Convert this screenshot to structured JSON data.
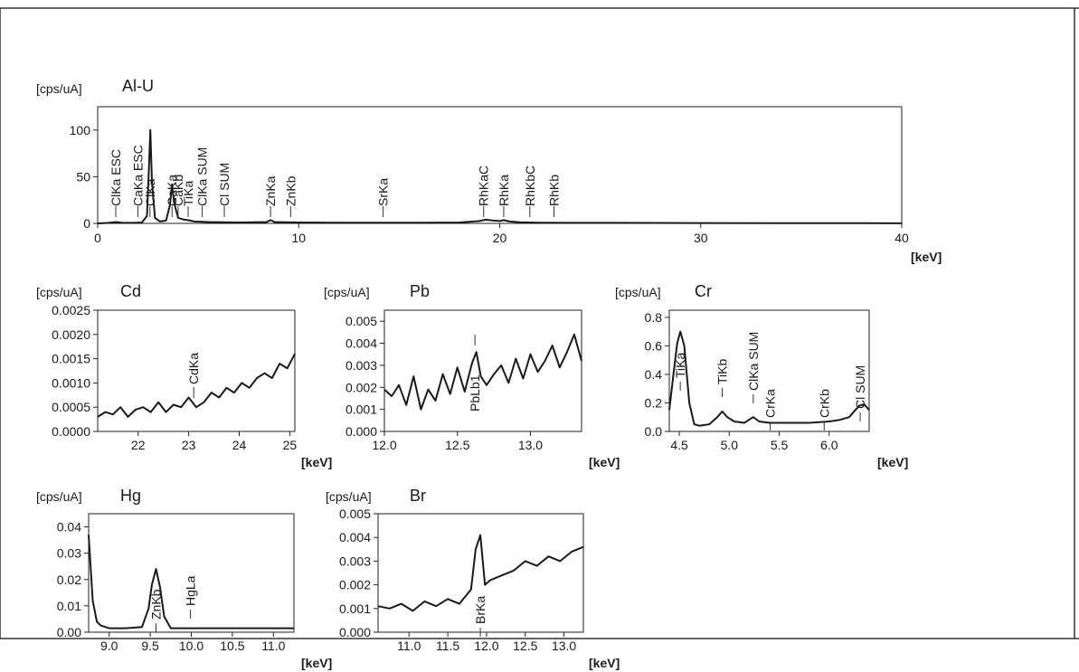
{
  "chart_data": [
    {
      "id": "alu",
      "type": "line",
      "title": "Al-U",
      "ylabel": "[cps/uA]",
      "xlabel": "[keV]",
      "xlim": [
        0,
        40
      ],
      "ylim": [
        0,
        125
      ],
      "xticks": [
        0,
        10,
        20,
        30,
        40
      ],
      "yticks": [
        0,
        50,
        100
      ],
      "peaks": [
        {
          "label": "ClKa ESC",
          "x": 0.9
        },
        {
          "label": "CaKa ESC",
          "x": 2.0
        },
        {
          "label": "ClKa",
          "x": 2.6
        },
        {
          "label": "CaKa",
          "x": 3.7
        },
        {
          "label": "CaKb",
          "x": 4.0
        },
        {
          "label": "TiKa",
          "x": 4.5
        },
        {
          "label": "ClKa SUM",
          "x": 5.2
        },
        {
          "label": "Cl SUM",
          "x": 6.3
        },
        {
          "label": "ZnKa",
          "x": 8.6
        },
        {
          "label": "ZnKb",
          "x": 9.6
        },
        {
          "label": "SrKa",
          "x": 14.2
        },
        {
          "label": "RhKaC",
          "x": 19.2
        },
        {
          "label": "RhKa",
          "x": 20.2
        },
        {
          "label": "RhKbC",
          "x": 21.5
        },
        {
          "label": "RhKb",
          "x": 22.7
        }
      ],
      "series": [
        {
          "x": [
            0.0,
            0.5,
            0.9,
            1.2,
            1.8,
            2.2,
            2.45,
            2.55,
            2.62,
            2.7,
            2.85,
            3.1,
            3.4,
            3.6,
            3.7,
            3.8,
            4.0,
            4.3,
            4.5,
            4.8,
            5.5,
            7.0,
            8.4,
            8.6,
            8.8,
            10,
            12,
            14,
            16,
            18,
            19,
            19.3,
            19.7,
            20.0,
            20.2,
            20.5,
            21,
            22,
            24,
            26,
            30,
            34,
            38,
            40
          ],
          "y": [
            0,
            0.5,
            1.5,
            0.8,
            0.6,
            1,
            8,
            60,
            100,
            45,
            6,
            2,
            3,
            20,
            42,
            22,
            6,
            4,
            3.5,
            2,
            1.5,
            1,
            1.5,
            3.5,
            1.5,
            1,
            0.8,
            0.8,
            0.8,
            1,
            2.5,
            4,
            3,
            2.5,
            3.5,
            2,
            1.2,
            0.8,
            0.6,
            0.6,
            0.4,
            0.3,
            0.2,
            0.1
          ]
        }
      ]
    },
    {
      "id": "cd",
      "type": "line",
      "title": "Cd",
      "ylabel": "[cps/uA]",
      "xlabel": "[keV]",
      "xlim": [
        21.2,
        25.1
      ],
      "ylim": [
        0,
        0.0025
      ],
      "xticks": [
        22,
        23,
        24,
        25
      ],
      "xticklabels": [
        "22",
        "23",
        "24",
        "25"
      ],
      "yticks": [
        0,
        0.0005,
        0.001,
        0.0015,
        0.002,
        0.0025
      ],
      "yticklabels": [
        "0.0000",
        "0.0005",
        "0.0010",
        "0.0015",
        "0.0020",
        "0.0025"
      ],
      "peaks": [
        {
          "label": "CdKa",
          "x": 23.1
        }
      ],
      "series": [
        {
          "x": [
            21.2,
            21.35,
            21.5,
            21.65,
            21.8,
            21.95,
            22.1,
            22.25,
            22.4,
            22.55,
            22.7,
            22.85,
            23.0,
            23.15,
            23.3,
            23.45,
            23.6,
            23.75,
            23.9,
            24.05,
            24.2,
            24.35,
            24.5,
            24.65,
            24.8,
            24.95,
            25.1
          ],
          "y": [
            0.0003,
            0.0004,
            0.00035,
            0.0005,
            0.0003,
            0.00045,
            0.0005,
            0.0004,
            0.0006,
            0.0004,
            0.00055,
            0.0005,
            0.0007,
            0.0005,
            0.0006,
            0.0008,
            0.0007,
            0.0009,
            0.0008,
            0.001,
            0.0009,
            0.0011,
            0.0012,
            0.0011,
            0.0014,
            0.0013,
            0.0016
          ]
        }
      ]
    },
    {
      "id": "pb",
      "type": "line",
      "title": "Pb",
      "ylabel": "[cps/uA]",
      "xlabel": "[keV]",
      "xlim": [
        12.0,
        13.35
      ],
      "ylim": [
        0,
        0.0055
      ],
      "xticks": [
        12.0,
        12.5,
        13.0
      ],
      "xticklabels": [
        "12.0",
        "12.5",
        "13.0"
      ],
      "yticks": [
        0,
        0.001,
        0.002,
        0.003,
        0.004,
        0.005
      ],
      "yticklabels": [
        "0.000",
        "0.001",
        "0.002",
        "0.003",
        "0.004",
        "0.005"
      ],
      "peaks": [
        {
          "label": "PbLb1",
          "x": 12.62
        }
      ],
      "series": [
        {
          "x": [
            12.0,
            12.05,
            12.1,
            12.15,
            12.2,
            12.25,
            12.3,
            12.35,
            12.4,
            12.45,
            12.5,
            12.55,
            12.6,
            12.63,
            12.66,
            12.7,
            12.75,
            12.8,
            12.85,
            12.9,
            12.95,
            13.0,
            13.05,
            13.1,
            13.15,
            13.2,
            13.25,
            13.3,
            13.35
          ],
          "y": [
            0.0019,
            0.0016,
            0.0021,
            0.0012,
            0.0025,
            0.001,
            0.0019,
            0.0014,
            0.0026,
            0.0017,
            0.0029,
            0.0018,
            0.0031,
            0.0036,
            0.0025,
            0.0021,
            0.0026,
            0.003,
            0.0022,
            0.0033,
            0.0024,
            0.0035,
            0.0027,
            0.0032,
            0.0039,
            0.0029,
            0.0036,
            0.0044,
            0.0032
          ]
        }
      ]
    },
    {
      "id": "cr",
      "type": "line",
      "title": "Cr",
      "ylabel": "[cps/uA]",
      "xlabel": "[keV]",
      "xlim": [
        4.4,
        6.4
      ],
      "ylim": [
        0,
        0.85
      ],
      "xticks": [
        4.5,
        5.0,
        5.5,
        6.0
      ],
      "xticklabels": [
        "4.5",
        "5.0",
        "5.5",
        "6.0"
      ],
      "yticks": [
        0,
        0.2,
        0.4,
        0.6,
        0.8
      ],
      "yticklabels": [
        "0.0",
        "0.2",
        "0.4",
        "0.6",
        "0.8"
      ],
      "peaks": [
        {
          "label": "TiKa",
          "x": 4.51
        },
        {
          "label": "TiKb",
          "x": 4.93
        },
        {
          "label": "ClKa SUM",
          "x": 5.24
        },
        {
          "label": "CrKa",
          "x": 5.41
        },
        {
          "label": "CrKb",
          "x": 5.95
        },
        {
          "label": "Cl SUM",
          "x": 6.31
        }
      ],
      "series": [
        {
          "x": [
            4.4,
            4.45,
            4.48,
            4.51,
            4.55,
            4.6,
            4.65,
            4.7,
            4.8,
            4.88,
            4.93,
            4.98,
            5.05,
            5.15,
            5.24,
            5.3,
            5.4,
            5.6,
            5.8,
            6.0,
            6.1,
            6.2,
            6.3,
            6.35,
            6.4
          ],
          "y": [
            0.15,
            0.45,
            0.62,
            0.7,
            0.6,
            0.2,
            0.05,
            0.04,
            0.05,
            0.1,
            0.14,
            0.1,
            0.07,
            0.06,
            0.1,
            0.07,
            0.06,
            0.06,
            0.06,
            0.07,
            0.08,
            0.1,
            0.18,
            0.19,
            0.15
          ]
        }
      ]
    },
    {
      "id": "hg",
      "type": "line",
      "title": "Hg",
      "ylabel": "[cps/uA]",
      "xlabel": "[keV]",
      "xlim": [
        8.75,
        11.25
      ],
      "ylim": [
        0,
        0.045
      ],
      "xticks": [
        9.0,
        9.5,
        10.0,
        10.5,
        11.0
      ],
      "xticklabels": [
        "9.0",
        "9.5",
        "10.0",
        "10.5",
        "11.0"
      ],
      "yticks": [
        0,
        0.01,
        0.02,
        0.03,
        0.04
      ],
      "yticklabels": [
        "0.00",
        "0.01",
        "0.02",
        "0.03",
        "0.04"
      ],
      "peaks": [
        {
          "label": "ZnKb",
          "x": 9.57
        },
        {
          "label": "HgLa",
          "x": 9.99
        }
      ],
      "series": [
        {
          "x": [
            8.75,
            8.8,
            8.85,
            8.9,
            9.0,
            9.2,
            9.4,
            9.48,
            9.52,
            9.57,
            9.62,
            9.67,
            9.75,
            9.9,
            10.0,
            10.2,
            10.5,
            10.8,
            11.0,
            11.25
          ],
          "y": [
            0.037,
            0.012,
            0.004,
            0.0025,
            0.0015,
            0.0015,
            0.002,
            0.009,
            0.018,
            0.024,
            0.017,
            0.006,
            0.0015,
            0.0015,
            0.0015,
            0.0015,
            0.0015,
            0.0015,
            0.0015,
            0.0015
          ]
        }
      ]
    },
    {
      "id": "br",
      "type": "line",
      "title": "Br",
      "ylabel": "[cps/uA]",
      "xlabel": "[keV]",
      "xlim": [
        10.6,
        13.25
      ],
      "ylim": [
        0,
        0.005
      ],
      "xticks": [
        11.0,
        11.5,
        12.0,
        12.5,
        13.0
      ],
      "xticklabels": [
        "11.0",
        "11.5",
        "12.0",
        "12.5",
        "13.0"
      ],
      "yticks": [
        0,
        0.001,
        0.002,
        0.003,
        0.004,
        0.005
      ],
      "yticklabels": [
        "0.000",
        "0.001",
        "0.002",
        "0.003",
        "0.004",
        "0.005"
      ],
      "peaks": [
        {
          "label": "BrKa",
          "x": 11.92
        }
      ],
      "series": [
        {
          "x": [
            10.6,
            10.75,
            10.9,
            11.05,
            11.2,
            11.35,
            11.5,
            11.65,
            11.8,
            11.86,
            11.92,
            11.98,
            12.05,
            12.2,
            12.35,
            12.5,
            12.65,
            12.8,
            12.95,
            13.1,
            13.25
          ],
          "y": [
            0.0011,
            0.001,
            0.0012,
            0.0009,
            0.0013,
            0.0011,
            0.0014,
            0.0012,
            0.0018,
            0.0035,
            0.0041,
            0.002,
            0.0022,
            0.0024,
            0.0026,
            0.003,
            0.0028,
            0.0032,
            0.003,
            0.0034,
            0.0036
          ]
        }
      ]
    }
  ]
}
